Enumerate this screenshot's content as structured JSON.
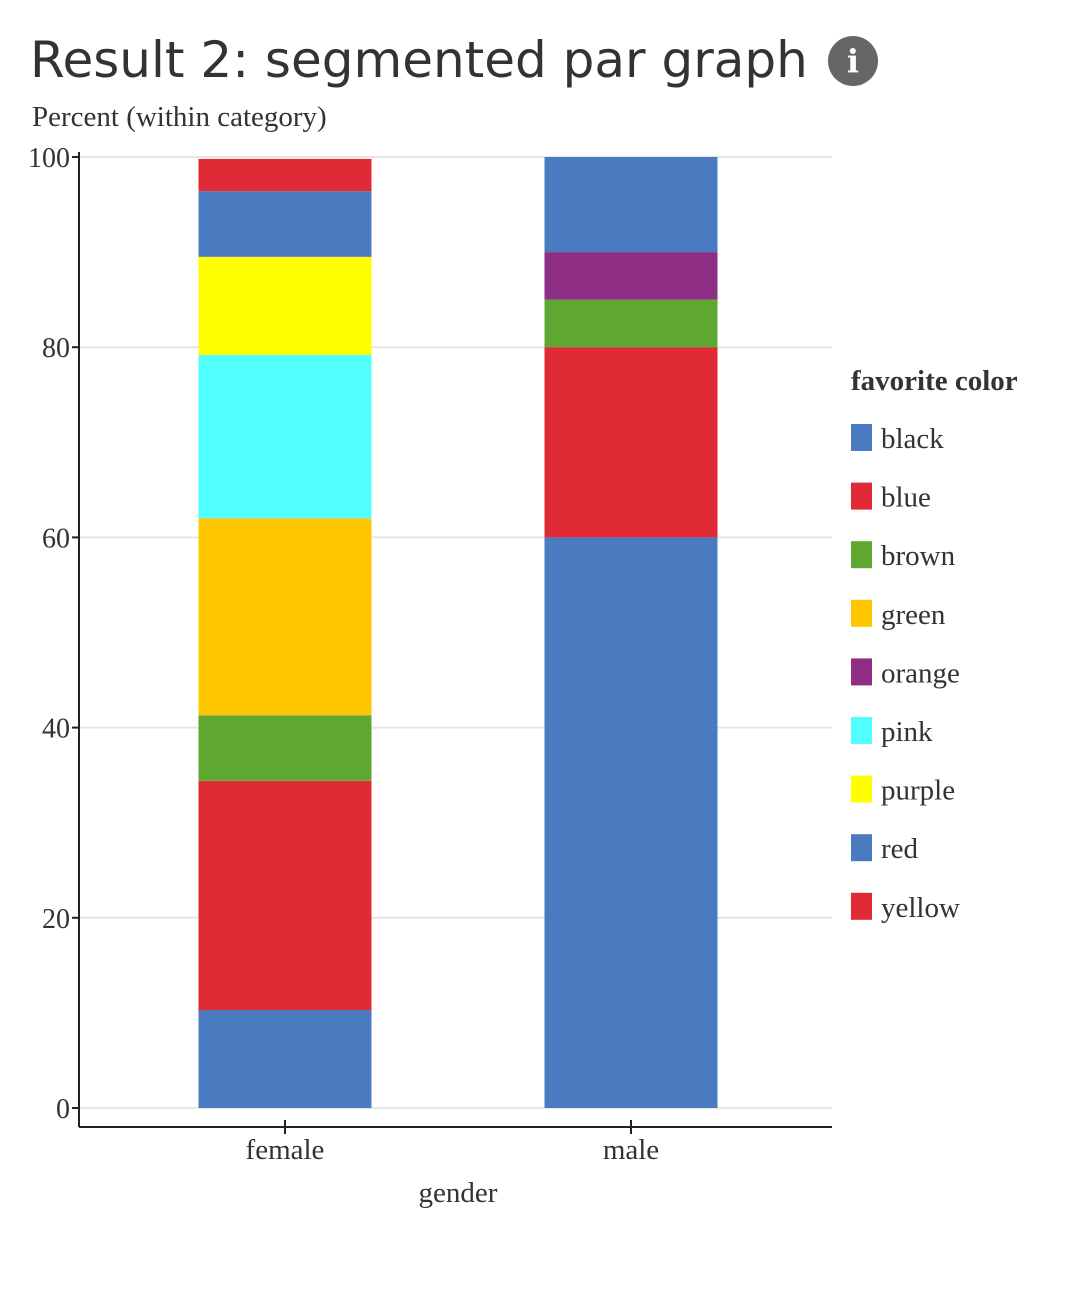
{
  "header": {
    "title": "Result 2: segmented par graph",
    "info_icon": "info-icon"
  },
  "chart_data": {
    "type": "bar",
    "stacked": true,
    "title": "",
    "xlabel": "gender",
    "ylabel": "Percent (within category)",
    "ylim": [
      0,
      100
    ],
    "yticks": [
      0,
      20,
      40,
      60,
      80,
      100
    ],
    "grid": true,
    "categories": [
      "female",
      "male"
    ],
    "legend": {
      "title": "favorite color",
      "placement": "right"
    },
    "series": [
      {
        "name": "black",
        "color": "#4a7bc0",
        "values": [
          10.3,
          60
        ]
      },
      {
        "name": "blue",
        "color": "#e02a36",
        "values": [
          24.1,
          20
        ]
      },
      {
        "name": "brown",
        "color": "#5ea832",
        "values": [
          6.9,
          5
        ]
      },
      {
        "name": "green",
        "color": "#ffc700",
        "values": [
          20.7,
          0
        ]
      },
      {
        "name": "orange",
        "color": "#8e2e84",
        "values": [
          0,
          5
        ]
      },
      {
        "name": "pink",
        "color": "#52ffff",
        "values": [
          17.2,
          0
        ]
      },
      {
        "name": "purple",
        "color": "#ffff00",
        "values": [
          10.3,
          0
        ]
      },
      {
        "name": "red",
        "color": "#4a7bc0",
        "values": [
          6.9,
          10
        ]
      },
      {
        "name": "yellow",
        "color": "#e02a36",
        "values": [
          3.4,
          0
        ]
      }
    ]
  }
}
